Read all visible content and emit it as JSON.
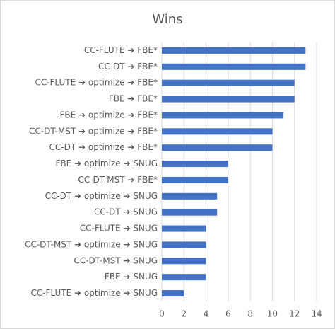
{
  "chart_data": {
    "type": "bar",
    "orientation": "horizontal",
    "title": "Wins",
    "categories": [
      "CC-FLUTE ➔ FBE*",
      "CC-DT ➔ FBE*",
      "CC-FLUTE ➔ optimize ➔ FBE*",
      "FBE ➔ FBE*",
      "FBE ➔ optimize ➔ FBE*",
      "CC-DT-MST ➔ optimize ➔ FBE*",
      "CC-DT ➔ optimize ➔ FBE*",
      "FBE ➔ optimize ➔ SNUG",
      "CC-DT-MST ➔ FBE*",
      "CC-DT ➔ optimize ➔ SNUG",
      "CC-DT ➔ SNUG",
      "CC-FLUTE ➔ SNUG",
      "CC-DT-MST ➔ optimize ➔ SNUG",
      "CC-DT-MST ➔ SNUG",
      "FBE ➔ SNUG",
      "CC-FLUTE ➔ optimize ➔ SNUG"
    ],
    "values": [
      13,
      13,
      12,
      12,
      11,
      10,
      10,
      6,
      6,
      5,
      5,
      4,
      4,
      4,
      4,
      2
    ],
    "color": "#4472c4",
    "xlim": [
      0,
      14
    ],
    "xticks": [
      0,
      2,
      4,
      6,
      8,
      10,
      12,
      14
    ],
    "grid": true
  }
}
